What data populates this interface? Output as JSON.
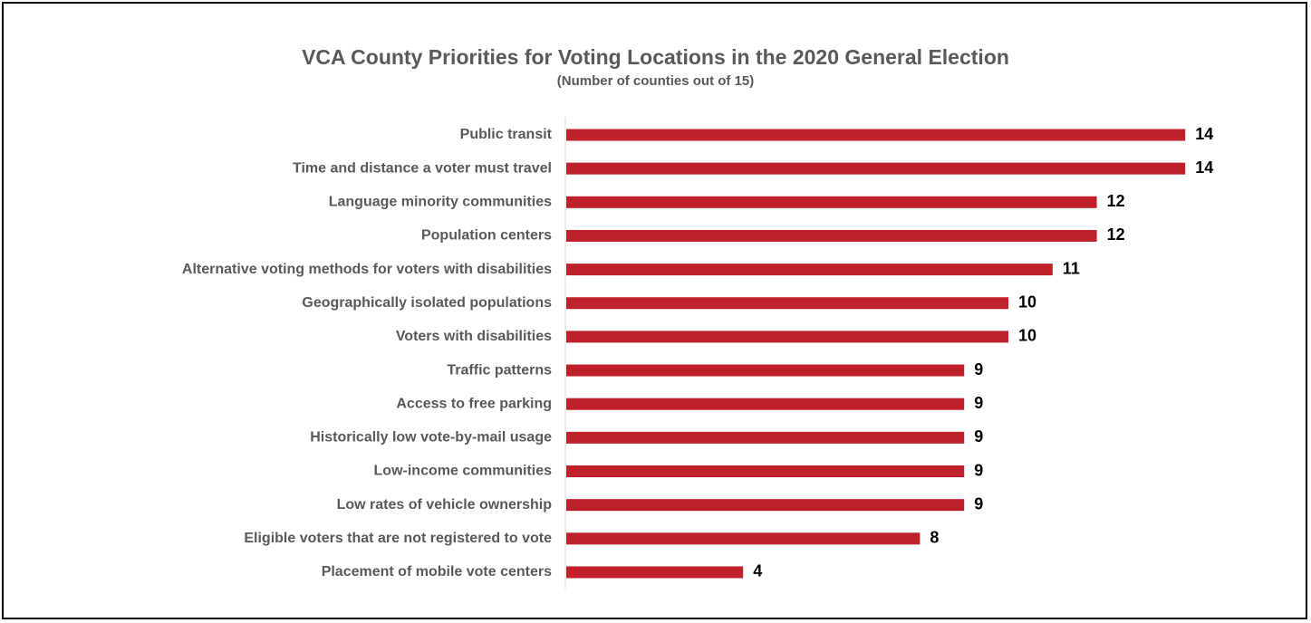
{
  "chart_data": {
    "type": "bar",
    "orientation": "horizontal",
    "title": "VCA County Priorities for Voting Locations in the 2020 General Election",
    "subtitle": "(Number of counties out of 15)",
    "xlabel": "",
    "ylabel": "",
    "xlim": [
      0,
      15
    ],
    "grid": false,
    "legend": "none",
    "bar_color": "#C0202A",
    "categories": [
      "Public transit",
      "Time and distance a voter must travel",
      "Language minority communities",
      "Population centers",
      "Alternative voting methods for voters with disabilities",
      "Geographically isolated populations",
      "Voters with disabilities",
      "Traffic patterns",
      "Access to free parking",
      "Historically low vote-by-mail usage",
      "Low-income communities",
      "Low rates of vehicle ownership",
      "Eligible voters that are not registered to vote",
      "Placement of mobile vote centers"
    ],
    "values": [
      14,
      14,
      12,
      12,
      11,
      10,
      10,
      9,
      9,
      9,
      9,
      9,
      8,
      4
    ]
  }
}
